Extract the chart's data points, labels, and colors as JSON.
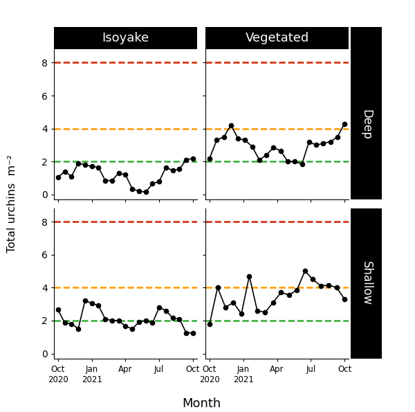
{
  "col_titles": [
    "Isoyake",
    "Vegetated"
  ],
  "row_labels": [
    "Deep",
    "Shallow"
  ],
  "hlines": [
    {
      "y": 8,
      "color": "#cc2200",
      "linestyle": "--",
      "linewidth": 1.8
    },
    {
      "y": 4,
      "color": "#ff9900",
      "linestyle": "--",
      "linewidth": 1.8
    },
    {
      "y": 2,
      "color": "#33aa33",
      "linestyle": "--",
      "linewidth": 1.8
    }
  ],
  "data": {
    "deep_isoyake": [
      1.05,
      1.4,
      1.1,
      1.9,
      1.8,
      1.7,
      1.65,
      0.85,
      0.85,
      1.3,
      1.2,
      0.35,
      0.2,
      0.15,
      0.65,
      0.8,
      1.65,
      1.45,
      1.55,
      2.1,
      2.2
    ],
    "deep_vegetated": [
      2.2,
      3.3,
      3.5,
      4.2,
      3.4,
      3.3,
      2.9,
      2.1,
      2.4,
      2.85,
      2.65,
      2.0,
      2.0,
      1.85,
      3.2,
      3.0,
      3.1,
      3.2,
      3.5,
      4.3
    ],
    "shallow_isoyake": [
      2.65,
      1.85,
      1.8,
      1.5,
      3.2,
      3.05,
      2.9,
      2.1,
      2.0,
      2.0,
      1.65,
      1.5,
      1.9,
      2.0,
      1.85,
      2.8,
      2.6,
      2.15,
      2.1,
      1.25,
      1.25
    ],
    "shallow_vegetated": [
      1.8,
      4.0,
      2.8,
      3.1,
      2.4,
      4.7,
      2.6,
      2.5,
      3.1,
      3.7,
      3.55,
      3.85,
      5.0,
      4.5,
      4.1,
      4.15,
      4.0,
      3.3
    ]
  },
  "xlabel": "Month",
  "ylabel": "Total urchins  m⁻²",
  "xtick_labels": [
    "Oct\n2020",
    "Jan\n2021",
    "Apr",
    "Jul",
    "Oct"
  ],
  "ylim": [
    -0.3,
    8.8
  ],
  "yticks": [
    0,
    2,
    4,
    6,
    8
  ],
  "line_color": "black",
  "marker": "o",
  "markersize": 4.5,
  "title_bg_color": "black",
  "title_text_color": "white",
  "row_label_bg_color": "black",
  "row_label_text_color": "white"
}
